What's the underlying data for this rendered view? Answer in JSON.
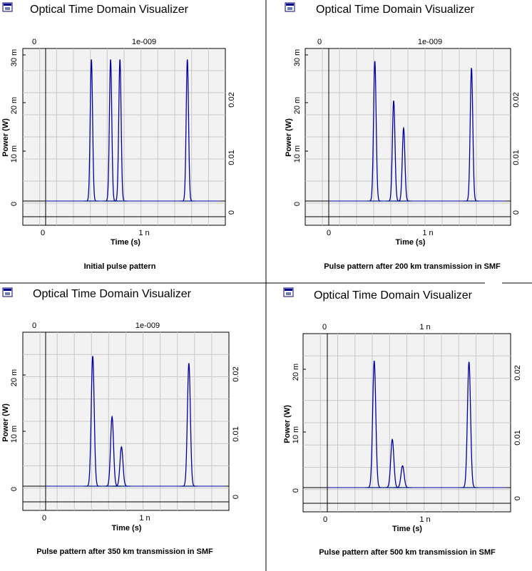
{
  "window": {
    "icon": "visualizer-window-icon"
  },
  "colors": {
    "trace": "#0000a0",
    "noise": "#00a000",
    "grid": "#c8c8c8",
    "plot_bg": "#f2f2f2"
  },
  "chart_data": [
    {
      "type": "line",
      "title": "Optical Time Domain Visualizer",
      "caption": "Initial pulse pattern",
      "xlabel": "Time (s)",
      "ylabel": "Power (W)",
      "x_unit": "ns",
      "xlim": [
        -0.2,
        1.8
      ],
      "ylim": [
        -0.004,
        0.031
      ],
      "top_ticks": [
        "0",
        "1e-009"
      ],
      "bottom_ticks": [
        "0",
        "1 n"
      ],
      "left_ticks": [
        {
          "v": 0,
          "t": "0"
        },
        {
          "v": 0.01,
          "t": "10 m"
        },
        {
          "v": 0.02,
          "t": "20 m"
        },
        {
          "v": 0.03,
          "t": "30 m"
        }
      ],
      "right_ticks": [
        {
          "v": -0.0015,
          "t": "0"
        },
        {
          "v": 0.0085,
          "t": "0.01"
        },
        {
          "v": 0.0185,
          "t": "0.02"
        }
      ],
      "pulse_width": 0.012,
      "series": [
        {
          "values": [
            {
              "x": 0.465,
              "y": 0.0268
            },
            {
              "x": 0.66,
              "y": 0.0268
            },
            {
              "x": 0.755,
              "y": 0.0268
            },
            {
              "x": 1.44,
              "y": 0.0268
            }
          ]
        }
      ]
    },
    {
      "type": "line",
      "title": "Optical Time Domain Visualizer",
      "caption": "Pulse pattern after 200 km transmission in SMF",
      "xlabel": "Time (s)",
      "ylabel": "Power (W)",
      "x_unit": "ns",
      "xlim": [
        -0.2,
        1.8
      ],
      "ylim": [
        -0.004,
        0.031
      ],
      "top_ticks": [
        "0",
        "1e-009"
      ],
      "bottom_ticks": [
        "0",
        "1 n"
      ],
      "left_ticks": [
        {
          "v": 0,
          "t": "0"
        },
        {
          "v": 0.01,
          "t": "10 m"
        },
        {
          "v": 0.02,
          "t": "20 m"
        },
        {
          "v": 0.03,
          "t": "30 m"
        }
      ],
      "right_ticks": [
        {
          "v": -0.0015,
          "t": "0"
        },
        {
          "v": 0.0085,
          "t": "0.01"
        },
        {
          "v": 0.0185,
          "t": "0.02"
        }
      ],
      "pulse_width": 0.013,
      "series": [
        {
          "values": [
            {
              "x": 0.465,
              "y": 0.0265
            },
            {
              "x": 0.655,
              "y": 0.019
            },
            {
              "x": 0.755,
              "y": 0.0138
            },
            {
              "x": 1.44,
              "y": 0.0252
            }
          ]
        }
      ]
    },
    {
      "type": "line",
      "title": "Optical Time Domain Visualizer",
      "caption": "Pulse pattern after 350 km transmission in SMF",
      "xlabel": "Time (s)",
      "ylabel": "Power (W)",
      "x_unit": "ns",
      "xlim": [
        -0.2,
        1.8
      ],
      "ylim": [
        -0.004,
        0.028
      ],
      "top_ticks": [
        "0",
        "1e-009"
      ],
      "bottom_ticks": [
        "0",
        "1 n"
      ],
      "left_ticks": [
        {
          "v": 0,
          "t": "0"
        },
        {
          "v": 0.01,
          "t": "10 m"
        },
        {
          "v": 0.02,
          "t": "20 m"
        }
      ],
      "right_ticks": [
        {
          "v": -0.0015,
          "t": "0"
        },
        {
          "v": 0.0085,
          "t": "0.01"
        },
        {
          "v": 0.0185,
          "t": "0.02"
        }
      ],
      "pulse_width": 0.015,
      "series": [
        {
          "values": [
            {
              "x": 0.475,
              "y": 0.0238
            },
            {
              "x": 0.67,
              "y": 0.0127
            },
            {
              "x": 0.765,
              "y": 0.0072
            },
            {
              "x": 1.445,
              "y": 0.0225
            }
          ]
        }
      ]
    },
    {
      "type": "line",
      "title": "Optical Time Domain Visualizer",
      "caption": "Pulse pattern after 500 km transmission in SMF",
      "xlabel": "Time (s)",
      "ylabel": "Power (W)",
      "x_unit": "ns",
      "xlim": [
        -0.2,
        1.8
      ],
      "ylim": [
        -0.004,
        0.028
      ],
      "top_ticks": [
        "0",
        "1 n"
      ],
      "bottom_ticks": [
        "0",
        "1 n"
      ],
      "left_ticks": [
        {
          "v": 0,
          "t": "0"
        },
        {
          "v": 0.01,
          "t": "10 m"
        },
        {
          "v": 0.02,
          "t": "20 m"
        }
      ],
      "right_ticks": [
        {
          "v": -0.0015,
          "t": "0"
        },
        {
          "v": 0.0085,
          "t": "0.01"
        },
        {
          "v": 0.0185,
          "t": "0.02"
        }
      ],
      "pulse_width": 0.016,
      "series": [
        {
          "values": [
            {
              "x": 0.48,
              "y": 0.0232
            },
            {
              "x": 0.665,
              "y": 0.0088
            },
            {
              "x": 0.77,
              "y": 0.004
            },
            {
              "x": 1.45,
              "y": 0.023
            }
          ]
        }
      ]
    }
  ]
}
